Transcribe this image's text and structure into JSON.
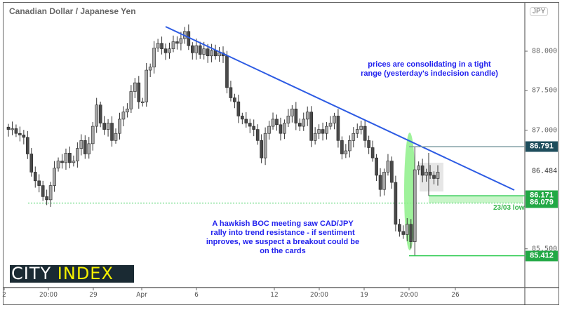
{
  "chart_data": {
    "type": "candlestick",
    "title": "Canadian Dollar / Japanese Yen",
    "currency": "JPY",
    "ylim": [
      85.06,
      88.57
    ],
    "yticks": [
      "88.000",
      "87.500",
      "87.000",
      "85.500"
    ],
    "current_price": "86.484",
    "xticks": [
      "2",
      "20:00",
      "29",
      "Apr",
      "6",
      "12",
      "20:00",
      "19",
      "20:00",
      "26"
    ],
    "closes": [
      87.01,
      87.02,
      86.96,
      86.94,
      86.91,
      86.7,
      86.47,
      86.36,
      86.3,
      86.16,
      86.12,
      86.3,
      86.52,
      86.61,
      86.59,
      86.71,
      86.59,
      86.61,
      86.77,
      86.87,
      86.7,
      86.83,
      87.05,
      87.32,
      87.09,
      87.01,
      87.09,
      86.87,
      86.96,
      87.14,
      87.23,
      87.27,
      87.49,
      87.6,
      87.36,
      87.36,
      87.76,
      87.8,
      88.04,
      88.1,
      88.03,
      87.98,
      88.03,
      88.12,
      88.1,
      88.16,
      88.25,
      88.07,
      87.98,
      88.07,
      87.96,
      88.03,
      87.94,
      88.01,
      87.94,
      87.98,
      87.94,
      87.54,
      87.41,
      87.36,
      87.18,
      87.14,
      87.09,
      87.05,
      87.01,
      86.87,
      86.65,
      86.96,
      87.05,
      87.14,
      87.07,
      86.96,
      87.09,
      87.18,
      87.27,
      87.09,
      87.05,
      87.14,
      87.23,
      86.87,
      86.96,
      87.01,
      86.96,
      87.05,
      87.09,
      87.18,
      86.87,
      86.7,
      86.74,
      86.87,
      86.96,
      87.01,
      87.05,
      86.87,
      86.78,
      86.65,
      86.43,
      86.25,
      86.47,
      86.61,
      86.34,
      85.81,
      85.72,
      85.68,
      85.81,
      85.59,
      86.5,
      86.55,
      86.43,
      86.47,
      86.43,
      86.39,
      86.47
    ],
    "levels": [
      {
        "label": "86.791",
        "price": 86.791,
        "color": "#1e4d5c"
      },
      {
        "label": "86.171",
        "price": 86.171,
        "color": "#22a845"
      },
      {
        "label": "86.079",
        "price": 86.079,
        "color": "#22a845"
      },
      {
        "label": "85.412",
        "price": 85.412,
        "color": "#22a845"
      }
    ],
    "low_label": "23/03 low",
    "annotations": {
      "top": "prices are consolidating in a tight range (yesterday's indecision candle)",
      "bottom": "A hawkish BOC meeting saw CAD/JPY rally into trend resistance - if sentiment inproves, we suspect a breakout could be on the cards"
    },
    "colors": {
      "trendline": "#2d5be3",
      "annotation_text": "#2222ee",
      "highlight": "#8ef08a"
    }
  },
  "logo": {
    "part1": "CITY",
    "part2": "INDEX"
  }
}
